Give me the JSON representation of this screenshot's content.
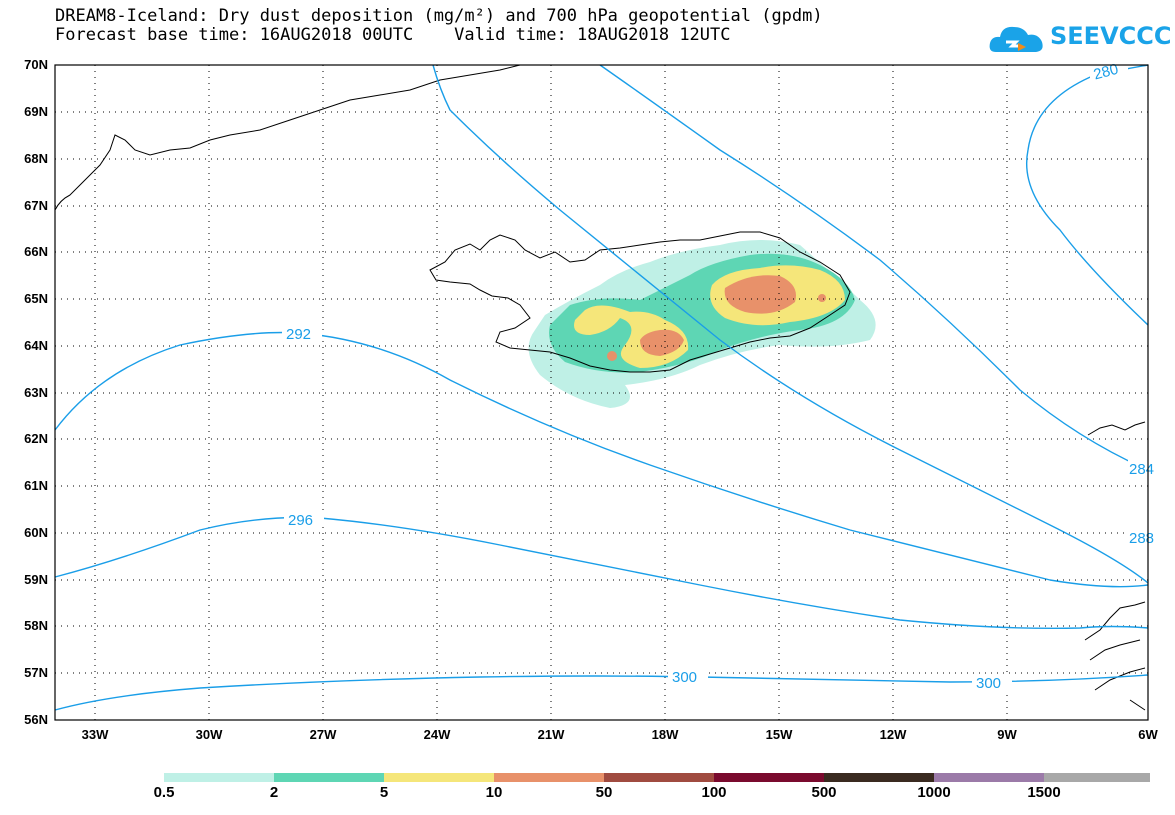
{
  "title_line1": "DREAM8-Iceland: Dry dust deposition (mg/m²) and 700 hPa geopotential (gpdm)",
  "title_line2": "Forecast base time: 16AUG2018 00UTC    Valid time: 18AUG2018 12UTC",
  "logo_text": "SEEVCCC",
  "lat_labels": [
    "70N",
    "69N",
    "68N",
    "67N",
    "66N",
    "65N",
    "64N",
    "63N",
    "62N",
    "61N",
    "60N",
    "59N",
    "58N",
    "57N",
    "56N"
  ],
  "lon_labels": [
    "33W",
    "30W",
    "27W",
    "24W",
    "21W",
    "18W",
    "15W",
    "12W",
    "9W",
    "6W"
  ],
  "contour_labels": [
    "280",
    "284",
    "288",
    "292",
    "296",
    "300",
    "300"
  ],
  "legend": {
    "labels": [
      "0.5",
      "2",
      "5",
      "10",
      "50",
      "100",
      "500",
      "1000",
      "1500"
    ],
    "colors": [
      "#bff0e6",
      "#5ed6b4",
      "#f5e67a",
      "#e8916a",
      "#a04b40",
      "#7a0a2e",
      "#3a2a20",
      "#9b7aa8",
      "#a8a8a8"
    ]
  }
}
